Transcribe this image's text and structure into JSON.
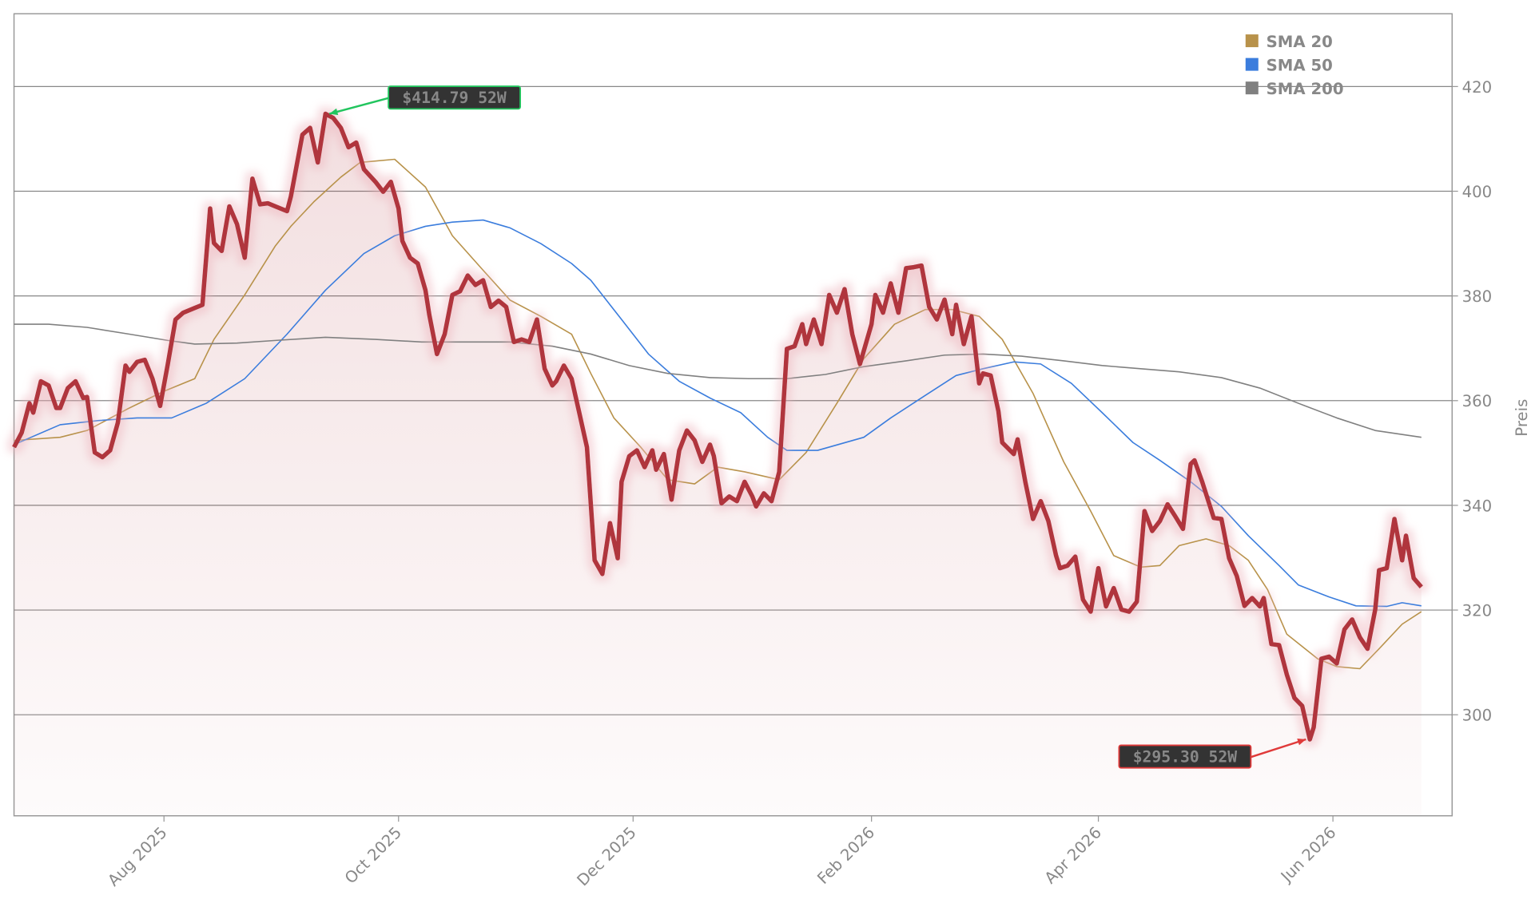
{
  "chart_data": {
    "type": "line",
    "y_label": "Preis",
    "xlim": [
      0,
      374
    ],
    "ylim": [
      280.7,
      433.9
    ],
    "xticks": [
      {
        "value": 39,
        "label": "Aug 2025"
      },
      {
        "value": 100,
        "label": "Oct 2025"
      },
      {
        "value": 161,
        "label": "Dec 2025"
      },
      {
        "value": 223,
        "label": "Feb 2026"
      },
      {
        "value": 282,
        "label": "Apr 2026"
      },
      {
        "value": 343,
        "label": "Jun 2026"
      }
    ],
    "yticks": [
      300,
      320,
      340,
      360,
      380,
      400,
      420
    ],
    "grid": true,
    "legend": "upper right",
    "series": [
      {
        "color": "#b0343c",
        "fill": true,
        "x": [
          0,
          2,
          4,
          5,
          7,
          9,
          11,
          12,
          14,
          16,
          18,
          19,
          21,
          23,
          25,
          27,
          29,
          30,
          32,
          34,
          36,
          38,
          40,
          42,
          44,
          47,
          49,
          51,
          52,
          54,
          56,
          58,
          60,
          62,
          64,
          66,
          68,
          71,
          72,
          75,
          77,
          79,
          81,
          83,
          85,
          87,
          89,
          91,
          94,
          96,
          98,
          100,
          101,
          103,
          105,
          107,
          108,
          110,
          112,
          114,
          116,
          118,
          120,
          122,
          124,
          126,
          128,
          130,
          132,
          134,
          136,
          138,
          140,
          141,
          143,
          145,
          147,
          149,
          151,
          153,
          155,
          157,
          158,
          160,
          162,
          164,
          166,
          167,
          169,
          171,
          173,
          175,
          177,
          179,
          181,
          182,
          184,
          186,
          188,
          190,
          192,
          193,
          195,
          197,
          199,
          201,
          203,
          205,
          206,
          208,
          210,
          212,
          214,
          216,
          218,
          220,
          223,
          224,
          226,
          228,
          230,
          232,
          234,
          236,
          238,
          240,
          242,
          244,
          245,
          247,
          249,
          251,
          252,
          254,
          256,
          257,
          260,
          261,
          263,
          265,
          267,
          269,
          271,
          272,
          274,
          276,
          278,
          280,
          282,
          284,
          286,
          288,
          290,
          292,
          294,
          296,
          298,
          300,
          302,
          304,
          306,
          307,
          309,
          312,
          314,
          316,
          318,
          320,
          322,
          324,
          325,
          327,
          329,
          331,
          333,
          335,
          337,
          338,
          340,
          342,
          344,
          346,
          348,
          350,
          352,
          354,
          355,
          357,
          359,
          361,
          362,
          364,
          366
        ],
        "values": [
          351.1,
          353.9,
          359.5,
          357.7,
          363.7,
          362.9,
          358.6,
          358.6,
          362.4,
          363.7,
          360.5,
          360.7,
          350.1,
          349.2,
          350.5,
          355.8,
          366.7,
          365.5,
          367.4,
          367.8,
          364.2,
          359.0,
          367.0,
          375.5,
          376.8,
          377.7,
          378.3,
          396.7,
          390.1,
          388.6,
          397.1,
          393.7,
          387.3,
          402.4,
          397.5,
          397.7,
          397.1,
          396.2,
          399.0,
          410.8,
          412.1,
          405.5,
          414.79,
          414.0,
          412.1,
          408.4,
          409.3,
          404.2,
          401.8,
          399.9,
          401.8,
          396.7,
          390.5,
          387.3,
          386.2,
          381.1,
          376.4,
          368.9,
          372.7,
          380.2,
          380.9,
          383.9,
          382.1,
          383.0,
          377.9,
          379.1,
          377.9,
          371.2,
          371.7,
          371.2,
          375.5,
          366.1,
          362.9,
          363.7,
          366.7,
          364.2,
          357.7,
          351.1,
          329.5,
          326.9,
          336.6,
          329.9,
          344.5,
          349.4,
          350.5,
          347.3,
          350.5,
          346.8,
          349.8,
          341.1,
          350.5,
          354.3,
          352.4,
          348.3,
          351.6,
          349.4,
          340.4,
          341.7,
          340.8,
          344.5,
          341.7,
          339.8,
          342.3,
          340.8,
          346.4,
          369.9,
          370.4,
          374.6,
          370.8,
          375.5,
          370.8,
          380.2,
          376.8,
          381.3,
          372.7,
          367.0,
          374.6,
          380.2,
          376.8,
          382.4,
          376.8,
          385.3,
          385.5,
          385.8,
          377.9,
          375.5,
          379.3,
          372.7,
          378.3,
          370.8,
          376.1,
          363.3,
          365.2,
          364.8,
          358.0,
          352.0,
          349.8,
          352.6,
          344.5,
          337.4,
          340.8,
          337.0,
          330.4,
          328.0,
          328.5,
          330.2,
          322.0,
          319.7,
          328.0,
          320.7,
          324.2,
          320.1,
          319.7,
          321.6,
          338.9,
          335.1,
          337.0,
          340.2,
          337.9,
          335.5,
          347.9,
          348.6,
          344.5,
          337.6,
          337.4,
          329.9,
          326.5,
          320.8,
          322.3,
          320.7,
          322.3,
          313.5,
          313.3,
          307.7,
          303.2,
          301.7,
          295.3,
          297.6,
          310.7,
          311.1,
          309.8,
          316.3,
          318.2,
          314.8,
          312.6,
          320.1,
          327.6,
          328.0,
          337.4,
          329.5,
          334.2,
          326.1,
          324.4
        ]
      },
      {
        "name": "SMA 20",
        "color": "#b8924a",
        "x": [
          0,
          12,
          19,
          30,
          39,
          47,
          52,
          60,
          68,
          72,
          78,
          85,
          90,
          99,
          107,
          114,
          122,
          129,
          137,
          145,
          150,
          156,
          163,
          170,
          177,
          183,
          190,
          199,
          206,
          214,
          221,
          229,
          237,
          244,
          251,
          257,
          265,
          273,
          280,
          286,
          293,
          298,
          303,
          310,
          316,
          321,
          326,
          331,
          339,
          344,
          350,
          355,
          361,
          366
        ],
        "values": [
          352.4,
          353.0,
          354.3,
          358.6,
          361.8,
          364.2,
          371.7,
          380.2,
          389.6,
          393.3,
          398.0,
          402.7,
          405.5,
          406.1,
          400.8,
          391.5,
          384.9,
          379.2,
          376.1,
          372.7,
          365.2,
          356.7,
          351.1,
          344.9,
          344.1,
          347.3,
          346.4,
          344.9,
          350.1,
          359.5,
          368.0,
          374.6,
          377.4,
          377.4,
          376.1,
          371.7,
          361.4,
          348.3,
          338.9,
          330.4,
          328.2,
          328.5,
          332.3,
          333.6,
          332.3,
          329.5,
          323.9,
          315.4,
          310.7,
          309.2,
          308.8,
          312.6,
          317.3,
          319.7
        ]
      },
      {
        "name": "SMA 50",
        "color": "#3b7ddd",
        "x": [
          0,
          12,
          22,
          32,
          41,
          50,
          60,
          71,
          81,
          91,
          99,
          107,
          114,
          122,
          129,
          137,
          145,
          150,
          158,
          165,
          173,
          181,
          189,
          196,
          201,
          209,
          221,
          228,
          237,
          245,
          252,
          260,
          267,
          275,
          283,
          291,
          298,
          306,
          314,
          321,
          329,
          334,
          342,
          349,
          357,
          361,
          366
        ],
        "values": [
          351.6,
          355.4,
          356.2,
          356.7,
          356.7,
          359.5,
          364.2,
          372.7,
          381.1,
          388.1,
          391.5,
          393.3,
          394.1,
          394.5,
          393.0,
          390.0,
          386.2,
          383.0,
          375.5,
          368.9,
          363.7,
          360.5,
          357.7,
          353.0,
          350.5,
          350.5,
          353.0,
          356.7,
          361.0,
          364.8,
          366.1,
          367.4,
          367.0,
          363.3,
          357.7,
          352.0,
          348.6,
          344.5,
          339.8,
          334.2,
          328.5,
          324.8,
          322.5,
          320.8,
          320.7,
          321.4,
          320.8
        ]
      },
      {
        "name": "SMA 200",
        "color": "#808080",
        "x": [
          0,
          9,
          19,
          30,
          40,
          47,
          58,
          68,
          81,
          94,
          106,
          117,
          129,
          140,
          150,
          160,
          170,
          181,
          191,
          201,
          211,
          221,
          232,
          242,
          252,
          262,
          273,
          283,
          293,
          303,
          314,
          324,
          334,
          344,
          354,
          366
        ],
        "values": [
          374.6,
          374.6,
          374.0,
          372.7,
          371.5,
          370.8,
          371.0,
          371.5,
          372.1,
          371.7,
          371.2,
          371.2,
          371.2,
          370.4,
          368.9,
          366.7,
          365.2,
          364.4,
          364.2,
          364.2,
          365.0,
          366.5,
          367.6,
          368.7,
          368.9,
          368.5,
          367.6,
          366.7,
          366.1,
          365.5,
          364.4,
          362.4,
          359.5,
          356.7,
          354.3,
          353.0
        ]
      }
    ],
    "annotations": [
      {
        "text": "$414.79 52W",
        "x": 81,
        "y": 414.79,
        "color": "#22c55e"
      },
      {
        "text": "$295.30 52W",
        "x": 337,
        "y": 295.3,
        "color": "#e03a3a"
      }
    ]
  }
}
